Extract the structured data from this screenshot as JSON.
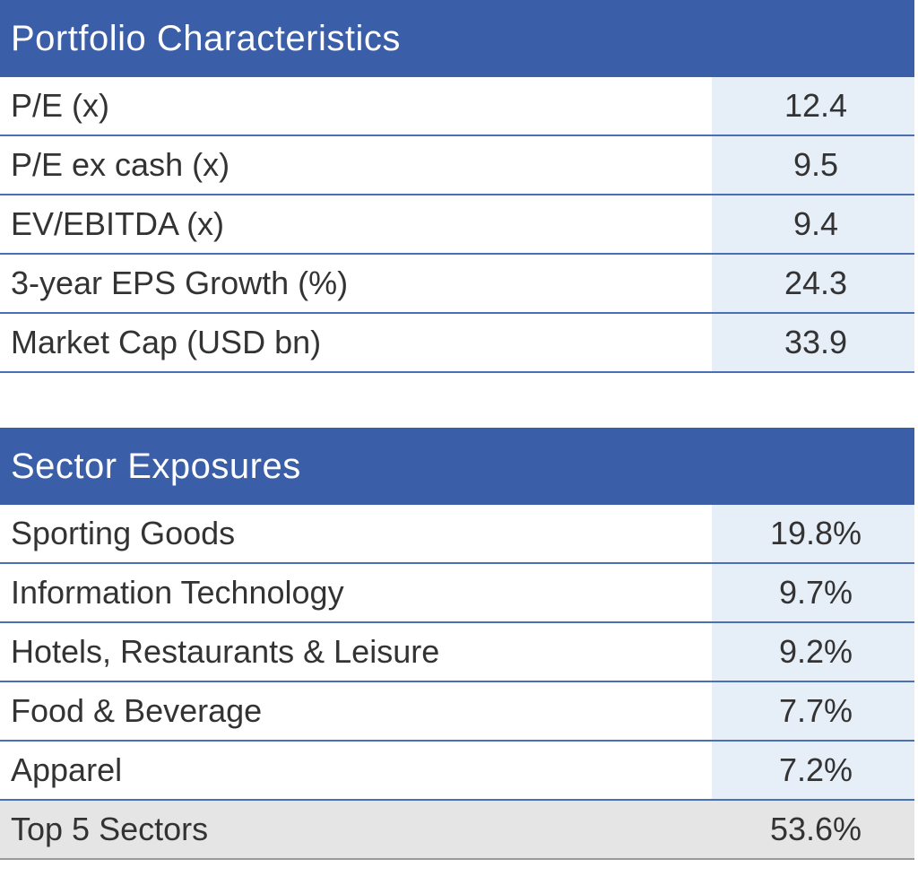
{
  "portfolio": {
    "title": "Portfolio Characteristics",
    "rows": [
      {
        "label": "P/E (x)",
        "value": "12.4"
      },
      {
        "label": "P/E ex cash (x)",
        "value": "9.5"
      },
      {
        "label": "EV/EBITDA (x)",
        "value": "9.4"
      },
      {
        "label": "3-year EPS Growth (%)",
        "value": "24.3"
      },
      {
        "label": "Market Cap (USD bn)",
        "value": "33.9"
      }
    ]
  },
  "sectors": {
    "title": "Sector Exposures",
    "rows": [
      {
        "label": "Sporting Goods",
        "value": "19.8%"
      },
      {
        "label": "Information Technology",
        "value": "9.7%"
      },
      {
        "label": "Hotels, Restaurants & Leisure",
        "value": "9.2%"
      },
      {
        "label": "Food & Beverage",
        "value": "7.7%"
      },
      {
        "label": "Apparel",
        "value": "7.2%"
      }
    ],
    "total": {
      "label": "Top 5 Sectors",
      "value": "53.6%"
    }
  },
  "colors": {
    "header_bg": "#3a5ea8",
    "value_cell_bg": "#e6eef8",
    "total_row_bg": "#e5e5e5",
    "divider": "#4a6fb5"
  }
}
